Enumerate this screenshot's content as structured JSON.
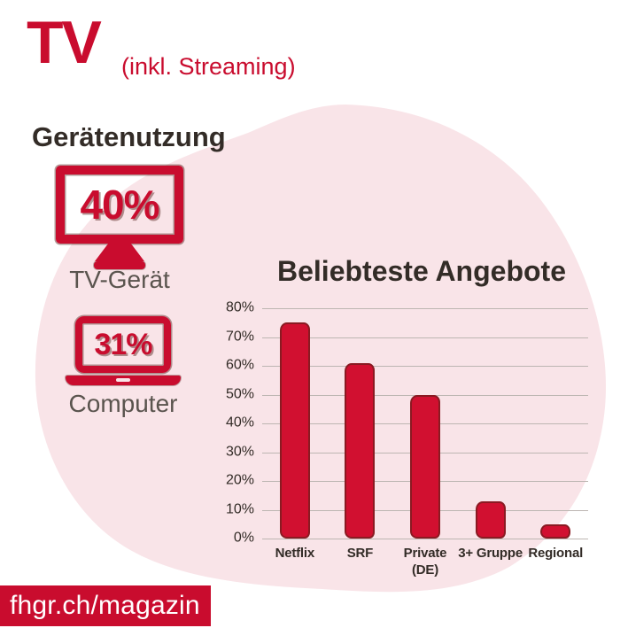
{
  "header": {
    "title": "TV",
    "subtitle": "(inkl. Streaming)"
  },
  "device_usage": {
    "heading": "Gerätenutzung",
    "items": [
      {
        "icon": "tv-icon",
        "value": "40%",
        "label": "TV-Gerät"
      },
      {
        "icon": "laptop-icon",
        "value": "31%",
        "label": "Computer"
      }
    ]
  },
  "chart_data": {
    "type": "bar",
    "title": "Beliebteste Angebote",
    "categories": [
      "Netflix",
      "SRF",
      "Private\n(DE)",
      "3+ Gruppe",
      "Regional"
    ],
    "values": [
      75,
      61,
      50,
      13,
      5
    ],
    "xlabel": "",
    "ylabel": "",
    "ylim": [
      0,
      80
    ],
    "ytick_step": 10,
    "ytick_suffix": "%",
    "grid": true,
    "legend": false
  },
  "footer": {
    "url": "fhgr.ch/magazin"
  },
  "colors": {
    "brand_red": "#c90c2e",
    "bar_fill": "#d11030",
    "bar_outline": "#8a1a22",
    "blob_pink": "#f9e4e8",
    "text_dark": "#332c27",
    "text_gray": "#5a544e",
    "gridline": "#bdb6b2"
  }
}
